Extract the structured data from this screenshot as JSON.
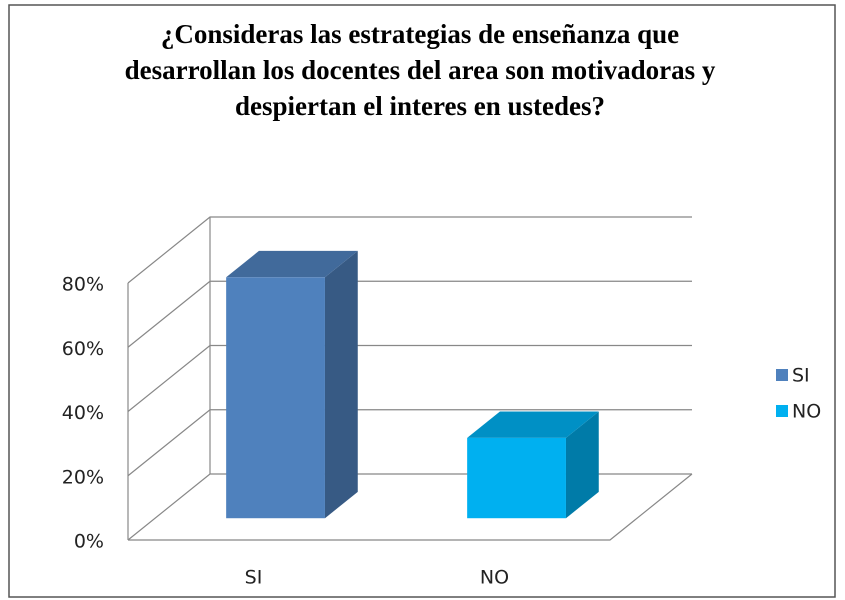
{
  "chart_data": {
    "type": "bar3d",
    "title": "¿Consideras las  estrategias de enseñanza que desarrollan los docentes del area son motivadoras y  despiertan el  interes  en ustedes?",
    "categories": [
      "SI",
      "NO"
    ],
    "series": [
      {
        "name": "SI",
        "color": "#4f81bd",
        "values": [
          75,
          null
        ]
      },
      {
        "name": "NO",
        "color": "#00b0f0",
        "values": [
          null,
          25
        ]
      }
    ],
    "ylim": [
      0,
      80
    ],
    "yticks": [
      {
        "value": 0,
        "label": "0%"
      },
      {
        "value": 20,
        "label": "20%"
      },
      {
        "value": 40,
        "label": "40%"
      },
      {
        "value": 60,
        "label": "60%"
      },
      {
        "value": 80,
        "label": "80%"
      }
    ],
    "grid": true,
    "legend": "right"
  }
}
